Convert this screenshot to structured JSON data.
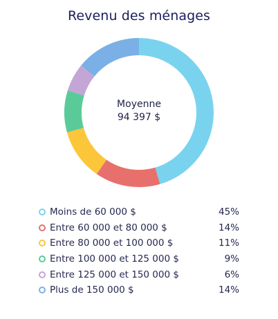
{
  "chart_data": {
    "type": "pie",
    "title": "Revenu des ménages",
    "center_label": [
      "Moyenne",
      "94 397 $"
    ],
    "legend_position": "bottom",
    "slices": [
      {
        "label": "Moins de 60 000 $",
        "value": 45,
        "display": "45%",
        "color": "#7ad3ee"
      },
      {
        "label": "Entre 60 000 et 80 000 $",
        "value": 14,
        "display": "14%",
        "color": "#e8706c"
      },
      {
        "label": "Entre 80 000 et 100 000 $",
        "value": 11,
        "display": "11%",
        "color": "#fcc63a"
      },
      {
        "label": "Entre 100 000 et 125 000 $",
        "value": 9,
        "display": "9%",
        "color": "#5acb98"
      },
      {
        "label": "Entre 125 000 et 150 000 $",
        "value": 6,
        "display": "6%",
        "color": "#c3a6d6"
      },
      {
        "label": "Plus de 150 000 $",
        "value": 14,
        "display": "14%",
        "color": "#7ab0e6"
      }
    ]
  }
}
